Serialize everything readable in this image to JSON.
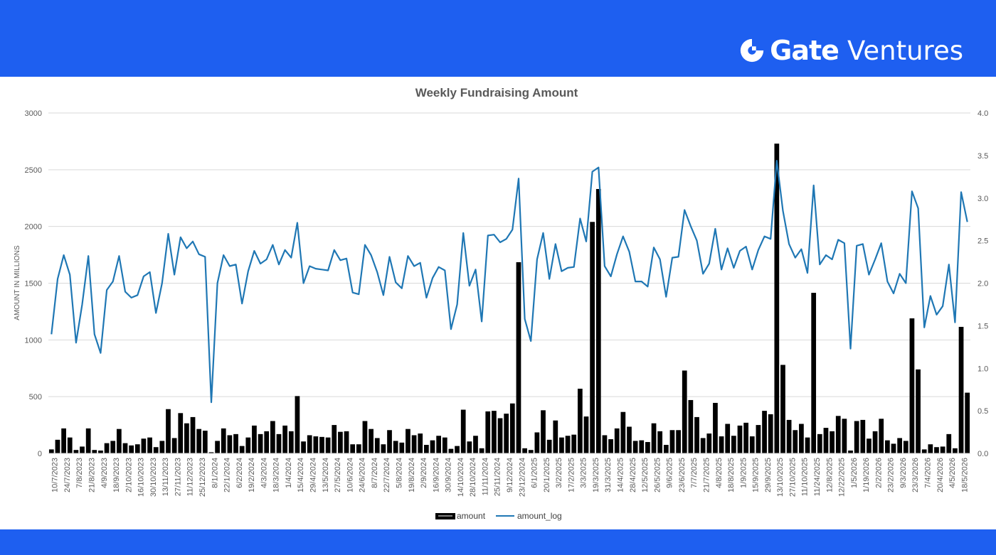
{
  "brand": {
    "name": "Gate",
    "sub": "Ventures"
  },
  "colors": {
    "band": "#1e5ff0",
    "bars": "#000000",
    "line": "#1f77b4",
    "grid": "#d9d9d9"
  },
  "chart_data": {
    "type": "bar",
    "title": "Weekly Fundraising Amount",
    "ylabel": "AMOUNT IN MILLIONS",
    "ylim": [
      0,
      3000
    ],
    "y2lim": [
      0,
      4.0
    ],
    "yticks": [
      "0",
      "500",
      "1000",
      "1500",
      "2000",
      "2500",
      "3000"
    ],
    "y2ticks": [
      "0.0",
      "0.5",
      "1.0",
      "1.5",
      "2.0",
      "2.5",
      "3.0",
      "3.5",
      "4.0"
    ],
    "grid": true,
    "legend_position": "bottom-center",
    "x_tick_labels": [
      "10/7/2023",
      "24/7/2023",
      "7/8/2023",
      "21/8/2023",
      "4/9/2023",
      "18/9/2023",
      "2/10/2023",
      "16/10/2023",
      "30/10/2023",
      "13/11/2023",
      "27/11/2023",
      "11/12/2023",
      "25/12/2023",
      "8/1/2024",
      "22/1/2024",
      "6/2/2024",
      "19/2/2024",
      "4/3/2024",
      "18/3/2024",
      "1/4/2024",
      "15/4/2024",
      "29/4/2024",
      "13/5/2024",
      "27/5/2024",
      "10/6/2024",
      "24/6/2024",
      "8/7/2024",
      "22/7/2024",
      "5/8/2024",
      "19/8/2024",
      "2/9/2024",
      "16/9/2024",
      "30/9/2024",
      "14/10/2024",
      "28/10/2024",
      "11/11/2024",
      "25/11/2024",
      "9/12/2024",
      "23/12/2024",
      "6/1/2025",
      "20/1/2025",
      "3/2/2025",
      "17/2/2025",
      "3/3/2025",
      "19/3/2025",
      "31/3/2025",
      "14/4/2025",
      "28/4/2025",
      "12/5/2025",
      "26/5/2025",
      "9/6/2025",
      "23/6/2025",
      "7/7/2025",
      "21/7/2025",
      "4/8/2025",
      "18/8/2025",
      "1/9/2025",
      "15/9/2025",
      "29/9/2025",
      "13/10/2025",
      "27/10/2025",
      "11/10/2025",
      "11/24/2025",
      "12/8/2025",
      "12/22/2025",
      "1/5/2026",
      "1/19/2026",
      "2/2/2026",
      "23/2/2026",
      "9/3/2026",
      "23/3/2026",
      "7/4/2026",
      "20/4/2026",
      "4/5/2026",
      "18/5/2026"
    ],
    "series": [
      {
        "name": "amount",
        "type": "bar",
        "axis": "left",
        "values": [
          35,
          120,
          220,
          140,
          30,
          60,
          220,
          30,
          25,
          90,
          110,
          215,
          90,
          70,
          80,
          130,
          140,
          55,
          110,
          390,
          135,
          355,
          265,
          320,
          215,
          200,
          10,
          110,
          220,
          160,
          170,
          65,
          140,
          245,
          170,
          195,
          285,
          170,
          245,
          195,
          505,
          105,
          160,
          150,
          145,
          140,
          250,
          190,
          195,
          80,
          80,
          285,
          215,
          135,
          80,
          205,
          110,
          95,
          215,
          160,
          175,
          75,
          115,
          155,
          140,
          40,
          65,
          385,
          105,
          155,
          45,
          370,
          375,
          310,
          350,
          440,
          1685,
          45,
          30,
          185,
          380,
          120,
          290,
          140,
          155,
          165,
          570,
          325,
          2040,
          2330,
          160,
          125,
          220,
          365,
          235,
          110,
          115,
          100,
          265,
          195,
          75,
          205,
          205,
          730,
          470,
          320,
          135,
          175,
          445,
          150,
          260,
          155,
          245,
          270,
          150,
          250,
          375,
          345,
          2730,
          780,
          295,
          205,
          260,
          140,
          1415,
          170,
          225,
          195,
          330,
          305,
          25,
          285,
          295,
          130,
          195,
          305,
          115,
          85,
          135,
          110,
          1190,
          740,
          35,
          80,
          55,
          60,
          170,
          45,
          1115,
          535
        ]
      },
      {
        "name": "amount_log",
        "type": "line",
        "axis": "right",
        "values": [
          1.4,
          2.05,
          2.33,
          2.1,
          1.3,
          1.75,
          2.32,
          1.4,
          1.18,
          1.92,
          2.02,
          2.32,
          1.9,
          1.83,
          1.86,
          2.08,
          2.13,
          1.65,
          2.0,
          2.58,
          2.1,
          2.54,
          2.41,
          2.49,
          2.34,
          2.31,
          0.6,
          2.0,
          2.33,
          2.2,
          2.22,
          1.76,
          2.14,
          2.38,
          2.23,
          2.28,
          2.45,
          2.22,
          2.39,
          2.3,
          2.71,
          2.0,
          2.2,
          2.17,
          2.16,
          2.15,
          2.39,
          2.27,
          2.29,
          1.89,
          1.87,
          2.45,
          2.33,
          2.13,
          1.86,
          2.31,
          2.01,
          1.94,
          2.32,
          2.2,
          2.24,
          1.83,
          2.06,
          2.19,
          2.15,
          1.46,
          1.75,
          2.59,
          1.97,
          2.16,
          1.55,
          2.56,
          2.57,
          2.48,
          2.52,
          2.63,
          3.23,
          1.58,
          1.32,
          2.28,
          2.59,
          2.05,
          2.46,
          2.14,
          2.18,
          2.19,
          2.76,
          2.49,
          3.31,
          3.36,
          2.2,
          2.08,
          2.34,
          2.55,
          2.37,
          2.02,
          2.02,
          1.96,
          2.42,
          2.28,
          1.84,
          2.3,
          2.31,
          2.86,
          2.67,
          2.5,
          2.11,
          2.23,
          2.64,
          2.16,
          2.41,
          2.18,
          2.38,
          2.43,
          2.16,
          2.39,
          2.55,
          2.52,
          3.44,
          2.85,
          2.46,
          2.3,
          2.4,
          2.12,
          3.15,
          2.22,
          2.33,
          2.28,
          2.51,
          2.47,
          1.23,
          2.44,
          2.46,
          2.1,
          2.28,
          2.47,
          2.02,
          1.88,
          2.11,
          2.0,
          3.08,
          2.88,
          1.48,
          1.85,
          1.63,
          1.73,
          2.22,
          1.54,
          3.07,
          2.72
        ]
      }
    ]
  }
}
